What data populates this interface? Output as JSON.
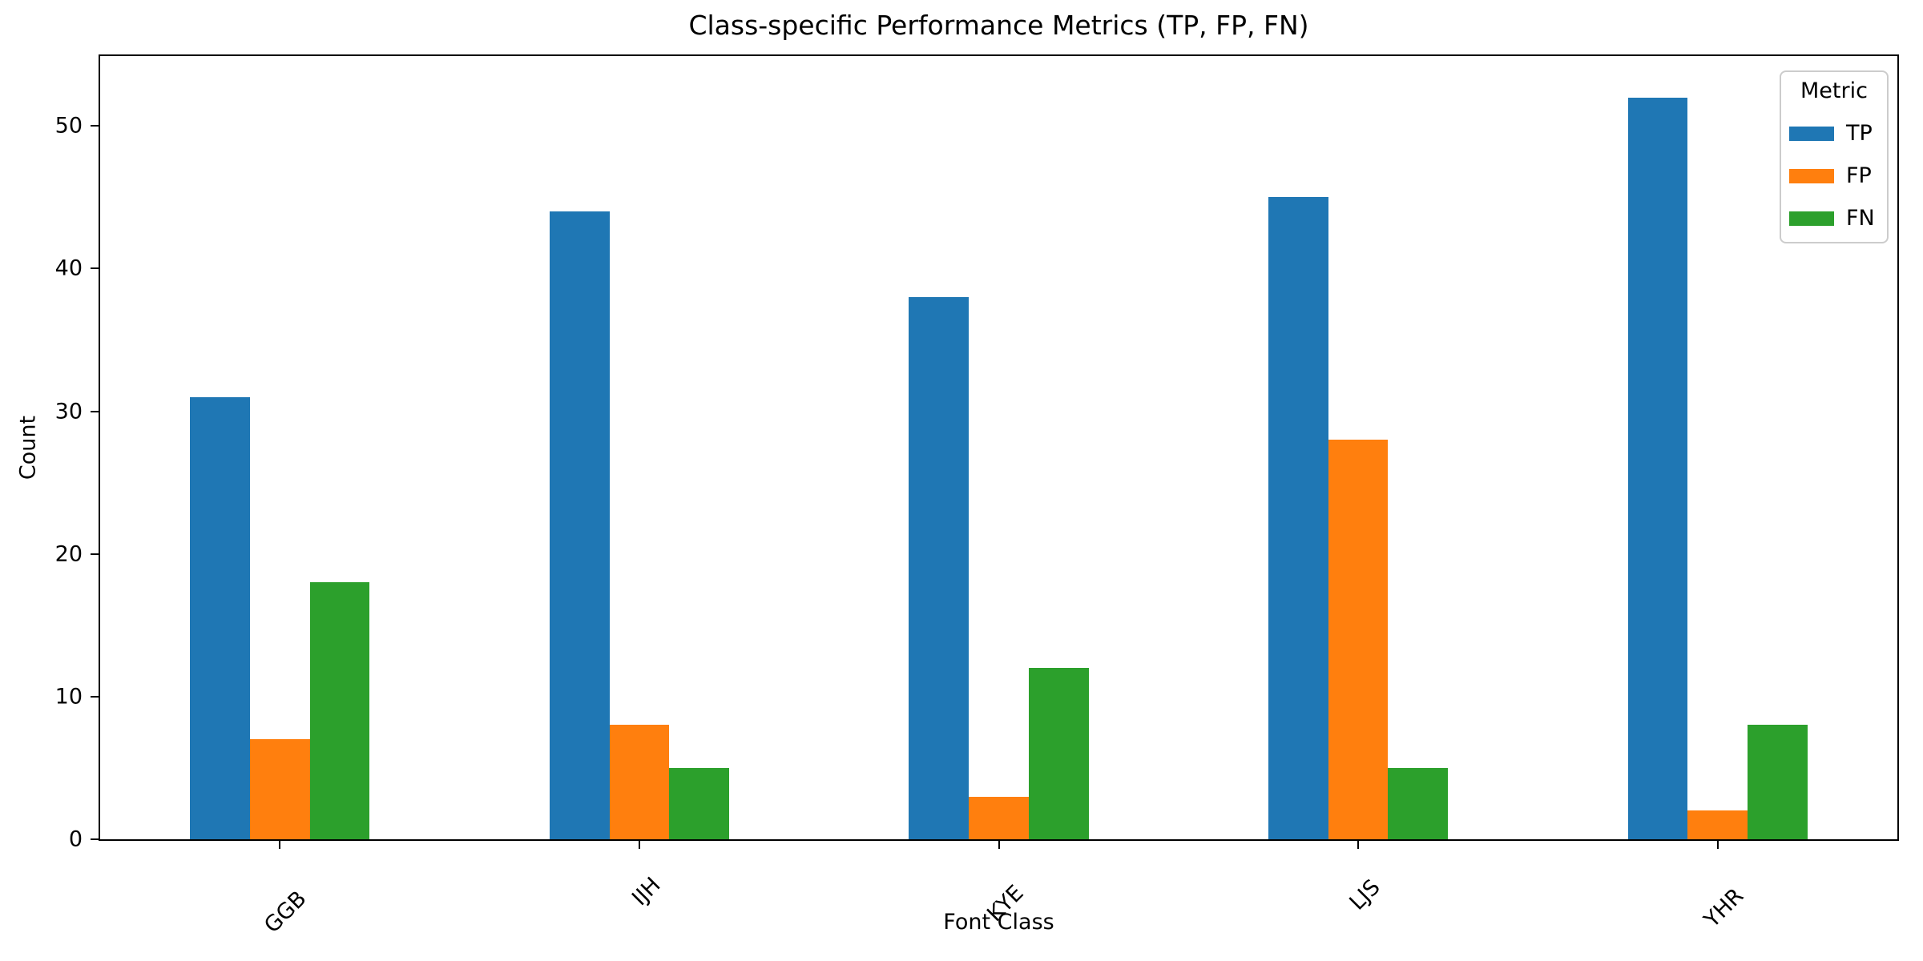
{
  "chart_data": {
    "type": "bar",
    "title": "Class-specific Performance Metrics (TP, FP, FN)",
    "xlabel": "Font Class",
    "ylabel": "Count",
    "categories": [
      "GGB",
      "IJH",
      "KYE",
      "LJS",
      "YHR"
    ],
    "series": [
      {
        "name": "TP",
        "color": "#1f77b4",
        "values": [
          31,
          44,
          38,
          45,
          52
        ]
      },
      {
        "name": "FP",
        "color": "#ff7f0e",
        "values": [
          7,
          8,
          3,
          28,
          2
        ]
      },
      {
        "name": "FN",
        "color": "#2ca02c",
        "values": [
          18,
          5,
          12,
          5,
          8
        ]
      }
    ],
    "yticks": [
      0,
      10,
      20,
      30,
      40,
      50
    ],
    "ylim": [
      0,
      54.9
    ],
    "xtick_rotation": 45,
    "grid": false,
    "background": "#ffffff",
    "legend": {
      "title": "Metric",
      "position": "upper right"
    }
  }
}
